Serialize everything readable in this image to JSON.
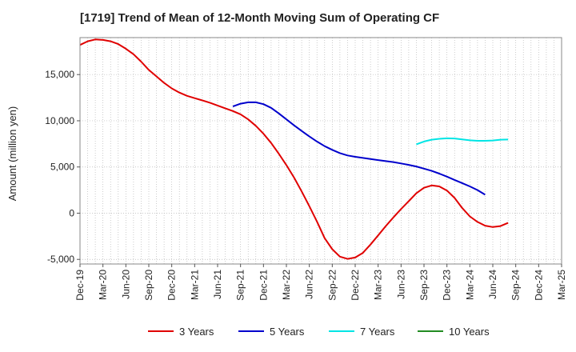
{
  "chart_data": {
    "type": "line",
    "title": "[1719]  Trend of Mean of 12-Month Moving Sum of Operating CF",
    "xlabel": "",
    "ylabel": "Amount (million yen)",
    "ylim": [
      -5500,
      19000
    ],
    "yticks": [
      -5000,
      0,
      5000,
      10000,
      15000
    ],
    "ytick_labels": [
      "-5,000",
      "0",
      "5,000",
      "10,000",
      "15,000"
    ],
    "x_tick_labels": [
      "Dec-19",
      "Mar-20",
      "Jun-20",
      "Sep-20",
      "Dec-20",
      "Mar-21",
      "Jun-21",
      "Sep-21",
      "Dec-21",
      "Mar-22",
      "Jun-22",
      "Sep-22",
      "Dec-22",
      "Mar-23",
      "Jun-23",
      "Sep-23",
      "Dec-23",
      "Mar-24",
      "Jun-24",
      "Sep-24",
      "Dec-24",
      "Mar-25"
    ],
    "x_range_months": [
      0,
      63
    ],
    "grid": true,
    "legend_position": "bottom",
    "series": [
      {
        "name": "3 Years",
        "color": "#e00000",
        "points": [
          [
            0,
            18200
          ],
          [
            1,
            18600
          ],
          [
            2,
            18800
          ],
          [
            3,
            18750
          ],
          [
            4,
            18600
          ],
          [
            5,
            18300
          ],
          [
            6,
            17800
          ],
          [
            7,
            17200
          ],
          [
            8,
            16400
          ],
          [
            9,
            15500
          ],
          [
            10,
            14800
          ],
          [
            11,
            14100
          ],
          [
            12,
            13500
          ],
          [
            13,
            13050
          ],
          [
            14,
            12700
          ],
          [
            15,
            12450
          ],
          [
            16,
            12200
          ],
          [
            17,
            11950
          ],
          [
            18,
            11650
          ],
          [
            19,
            11350
          ],
          [
            20,
            11050
          ],
          [
            21,
            10700
          ],
          [
            22,
            10150
          ],
          [
            23,
            9450
          ],
          [
            24,
            8600
          ],
          [
            25,
            7600
          ],
          [
            26,
            6450
          ],
          [
            27,
            5200
          ],
          [
            28,
            3850
          ],
          [
            29,
            2350
          ],
          [
            30,
            750
          ],
          [
            31,
            -900
          ],
          [
            32,
            -2700
          ],
          [
            33,
            -3900
          ],
          [
            34,
            -4700
          ],
          [
            35,
            -4950
          ],
          [
            36,
            -4800
          ],
          [
            37,
            -4300
          ],
          [
            38,
            -3400
          ],
          [
            39,
            -2400
          ],
          [
            40,
            -1400
          ],
          [
            41,
            -450
          ],
          [
            42,
            450
          ],
          [
            43,
            1300
          ],
          [
            44,
            2150
          ],
          [
            45,
            2750
          ],
          [
            46,
            3000
          ],
          [
            47,
            2900
          ],
          [
            48,
            2450
          ],
          [
            49,
            1650
          ],
          [
            50,
            550
          ],
          [
            51,
            -350
          ],
          [
            52,
            -950
          ],
          [
            53,
            -1350
          ],
          [
            54,
            -1500
          ],
          [
            55,
            -1400
          ],
          [
            56,
            -1050
          ]
        ]
      },
      {
        "name": "5 Years",
        "color": "#0000cc",
        "points": [
          [
            20,
            11550
          ],
          [
            21,
            11850
          ],
          [
            22,
            12000
          ],
          [
            23,
            12000
          ],
          [
            24,
            11800
          ],
          [
            25,
            11400
          ],
          [
            26,
            10800
          ],
          [
            27,
            10150
          ],
          [
            28,
            9500
          ],
          [
            29,
            8900
          ],
          [
            30,
            8300
          ],
          [
            31,
            7750
          ],
          [
            32,
            7250
          ],
          [
            33,
            6850
          ],
          [
            34,
            6500
          ],
          [
            35,
            6250
          ],
          [
            36,
            6100
          ],
          [
            37,
            5980
          ],
          [
            38,
            5870
          ],
          [
            39,
            5750
          ],
          [
            40,
            5630
          ],
          [
            41,
            5530
          ],
          [
            42,
            5380
          ],
          [
            43,
            5230
          ],
          [
            44,
            5050
          ],
          [
            45,
            4820
          ],
          [
            46,
            4580
          ],
          [
            47,
            4280
          ],
          [
            48,
            3950
          ],
          [
            49,
            3600
          ],
          [
            50,
            3250
          ],
          [
            51,
            2900
          ],
          [
            52,
            2500
          ],
          [
            53,
            2000
          ]
        ]
      },
      {
        "name": "7 Years",
        "color": "#00e5e5",
        "points": [
          [
            44,
            7450
          ],
          [
            45,
            7750
          ],
          [
            46,
            7950
          ],
          [
            47,
            8050
          ],
          [
            48,
            8100
          ],
          [
            49,
            8080
          ],
          [
            50,
            7980
          ],
          [
            51,
            7880
          ],
          [
            52,
            7830
          ],
          [
            53,
            7830
          ],
          [
            54,
            7870
          ],
          [
            55,
            7950
          ],
          [
            56,
            7970
          ]
        ]
      },
      {
        "name": "10 Years",
        "color": "#228b22",
        "points": []
      }
    ]
  }
}
